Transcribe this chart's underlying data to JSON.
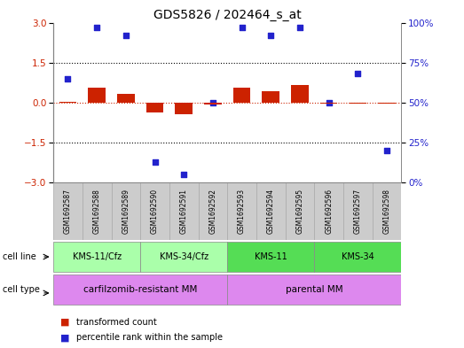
{
  "title": "GDS5826 / 202464_s_at",
  "samples": [
    "GSM1692587",
    "GSM1692588",
    "GSM1692589",
    "GSM1692590",
    "GSM1692591",
    "GSM1692592",
    "GSM1692593",
    "GSM1692594",
    "GSM1692595",
    "GSM1692596",
    "GSM1692597",
    "GSM1692598"
  ],
  "transformed_count": [
    0.02,
    0.55,
    0.32,
    -0.38,
    -0.42,
    -0.08,
    0.55,
    0.42,
    0.65,
    -0.04,
    -0.04,
    -0.04
  ],
  "percentile_rank": [
    65,
    97,
    92,
    13,
    5,
    50,
    97,
    92,
    97,
    50,
    68,
    20
  ],
  "left_ylim": [
    -3,
    3
  ],
  "right_ylim": [
    0,
    100
  ],
  "left_yticks": [
    -3,
    -1.5,
    0,
    1.5,
    3
  ],
  "right_yticks": [
    0,
    25,
    50,
    75,
    100
  ],
  "right_yticklabels": [
    "0%",
    "25%",
    "50%",
    "75%",
    "100%"
  ],
  "hlines_black": [
    1.5,
    -1.5
  ],
  "red_hline_y": 0,
  "bar_color": "#cc2200",
  "dot_color": "#2222cc",
  "cell_line_labels": [
    "KMS-11/Cfz",
    "KMS-34/Cfz",
    "KMS-11",
    "KMS-34"
  ],
  "cell_line_colors": [
    "#aaffaa",
    "#aaffaa",
    "#55dd55",
    "#55dd55"
  ],
  "cell_line_ranges": [
    [
      0,
      3
    ],
    [
      3,
      6
    ],
    [
      6,
      9
    ],
    [
      9,
      12
    ]
  ],
  "cell_type_labels": [
    "carfilzomib-resistant MM",
    "parental MM"
  ],
  "cell_type_color": "#dd88ee",
  "cell_type_ranges": [
    [
      0,
      6
    ],
    [
      6,
      12
    ]
  ],
  "sample_bg_color": "#cccccc",
  "legend_bar_label": "transformed count",
  "legend_dot_label": "percentile rank within the sample",
  "bg_color": "#ffffff"
}
